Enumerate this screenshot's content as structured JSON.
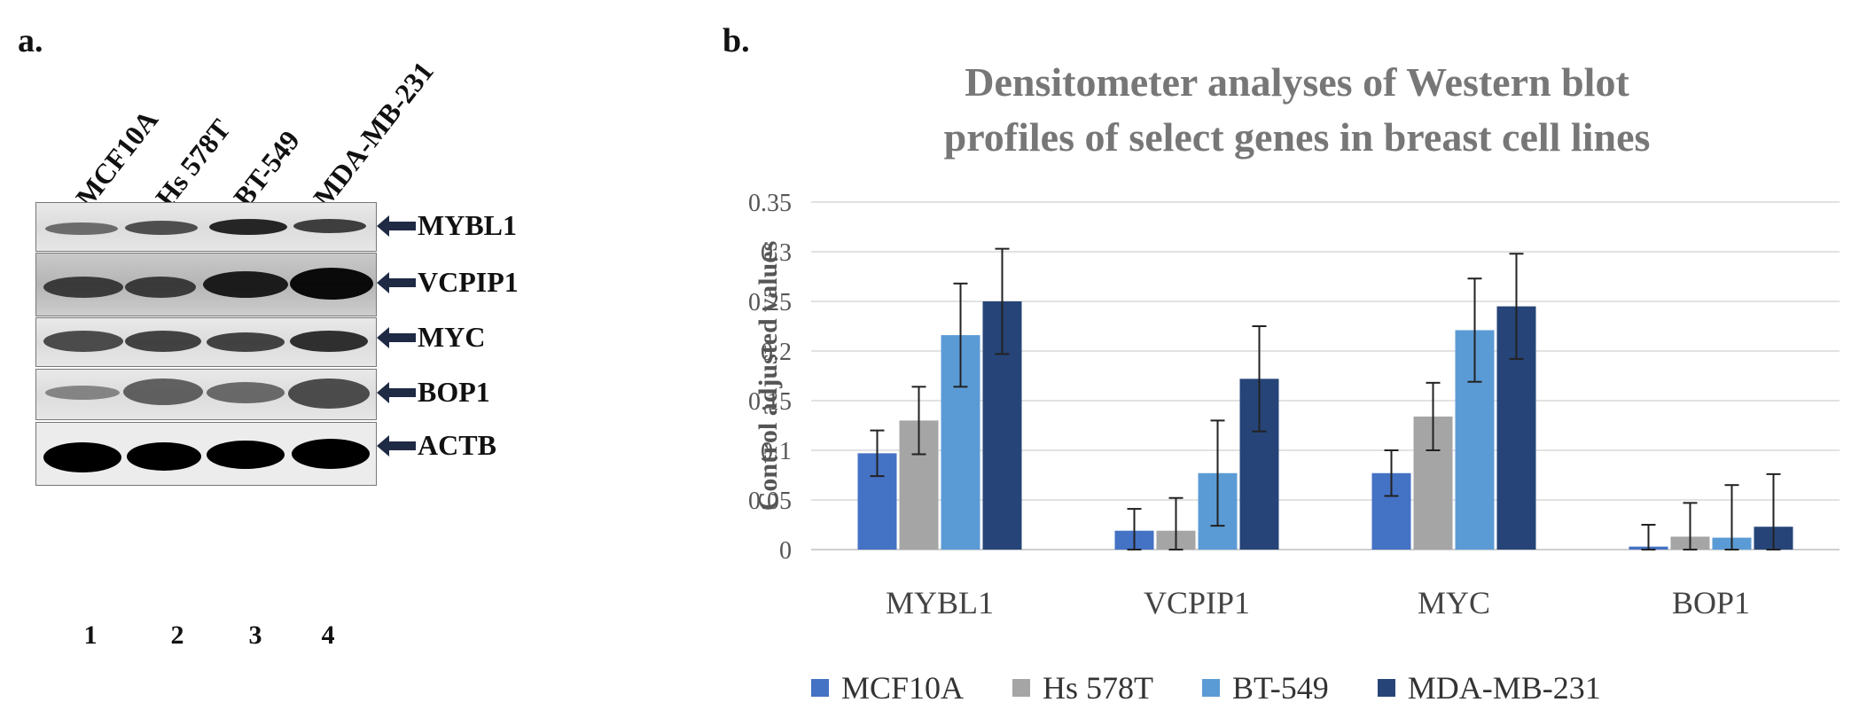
{
  "panels": {
    "a": "a.",
    "b": "b."
  },
  "blot": {
    "lanes": [
      "MCF10A",
      "Hs 578T",
      "BT-549",
      "MDA-MB-231"
    ],
    "lane_numbers": [
      "1",
      "2",
      "3",
      "4"
    ],
    "genes": [
      "MYBL1",
      "VCPIP1",
      "MYC",
      "BOP1",
      "ACTB"
    ]
  },
  "chart_data": {
    "type": "bar",
    "title": "Densitometer analyses of Western blot profiles of select genes in breast cell lines",
    "title_lines": [
      "Densitometer analyses of Western blot",
      "profiles of select genes in breast cell lines"
    ],
    "ylabel": "Control adjusted values",
    "xlabel": "",
    "ylim": [
      0,
      0.35
    ],
    "yticks": [
      "0",
      "0.05",
      "0.1",
      "0.15",
      "0.2",
      "0.25",
      "0.3",
      "0.35"
    ],
    "categories": [
      "MYBL1",
      "VCPIP1",
      "MYC",
      "BOP1"
    ],
    "series": [
      {
        "name": "MCF10A",
        "color": "#4472c4",
        "values": [
          0.097,
          0.019,
          0.077,
          0.003
        ],
        "errors": [
          0.023,
          0.022,
          0.023,
          0.022
        ]
      },
      {
        "name": "Hs 578T",
        "color": "#a5a5a5",
        "values": [
          0.13,
          0.019,
          0.134,
          0.013
        ],
        "errors": [
          0.034,
          0.033,
          0.034,
          0.034
        ]
      },
      {
        "name": "BT-549",
        "color": "#5b9bd5",
        "values": [
          0.216,
          0.077,
          0.221,
          0.012
        ],
        "errors": [
          0.052,
          0.053,
          0.052,
          0.053
        ]
      },
      {
        "name": "MDA-MB-231",
        "color": "#264478",
        "values": [
          0.25,
          0.172,
          0.245,
          0.023
        ],
        "errors": [
          0.053,
          0.053,
          0.053,
          0.053
        ]
      }
    ],
    "legend_position": "bottom"
  }
}
